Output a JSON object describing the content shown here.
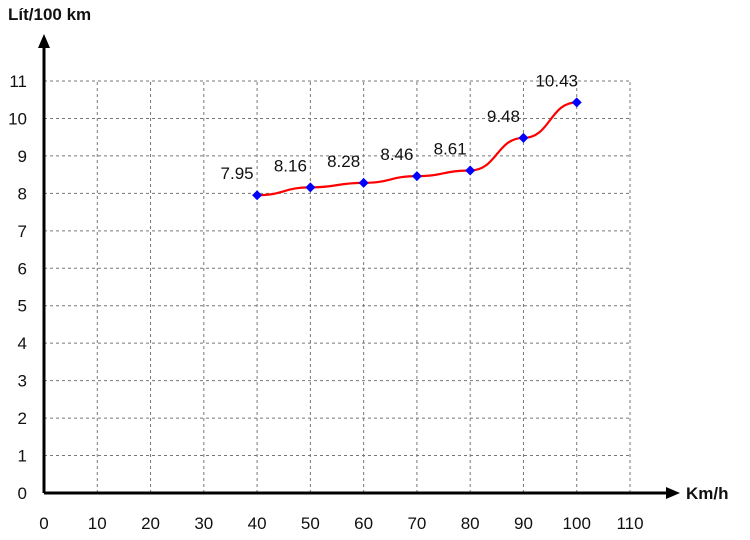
{
  "chart_data": {
    "type": "line",
    "title": "",
    "xlabel": "Km/h",
    "ylabel": "Lít/100 km",
    "x_ticks": [
      "0",
      "10",
      "20",
      "30",
      "40",
      "50",
      "60",
      "70",
      "80",
      "90",
      "100",
      "110"
    ],
    "y_ticks": [
      "0",
      "1",
      "2",
      "3",
      "4",
      "5",
      "6",
      "7",
      "8",
      "9",
      "10",
      "11"
    ],
    "xlim": [
      0,
      110
    ],
    "ylim": [
      0,
      11
    ],
    "grid": true,
    "line_color": "#ff0000",
    "marker_color": "#0000ff",
    "x": [
      40,
      50,
      60,
      70,
      80,
      90,
      100
    ],
    "values": [
      7.95,
      8.16,
      8.28,
      8.46,
      8.61,
      9.48,
      10.43
    ],
    "data_labels": [
      "7.95",
      "8.16",
      "8.28",
      "8.46",
      "8.61",
      "9.48",
      "10.43"
    ]
  }
}
